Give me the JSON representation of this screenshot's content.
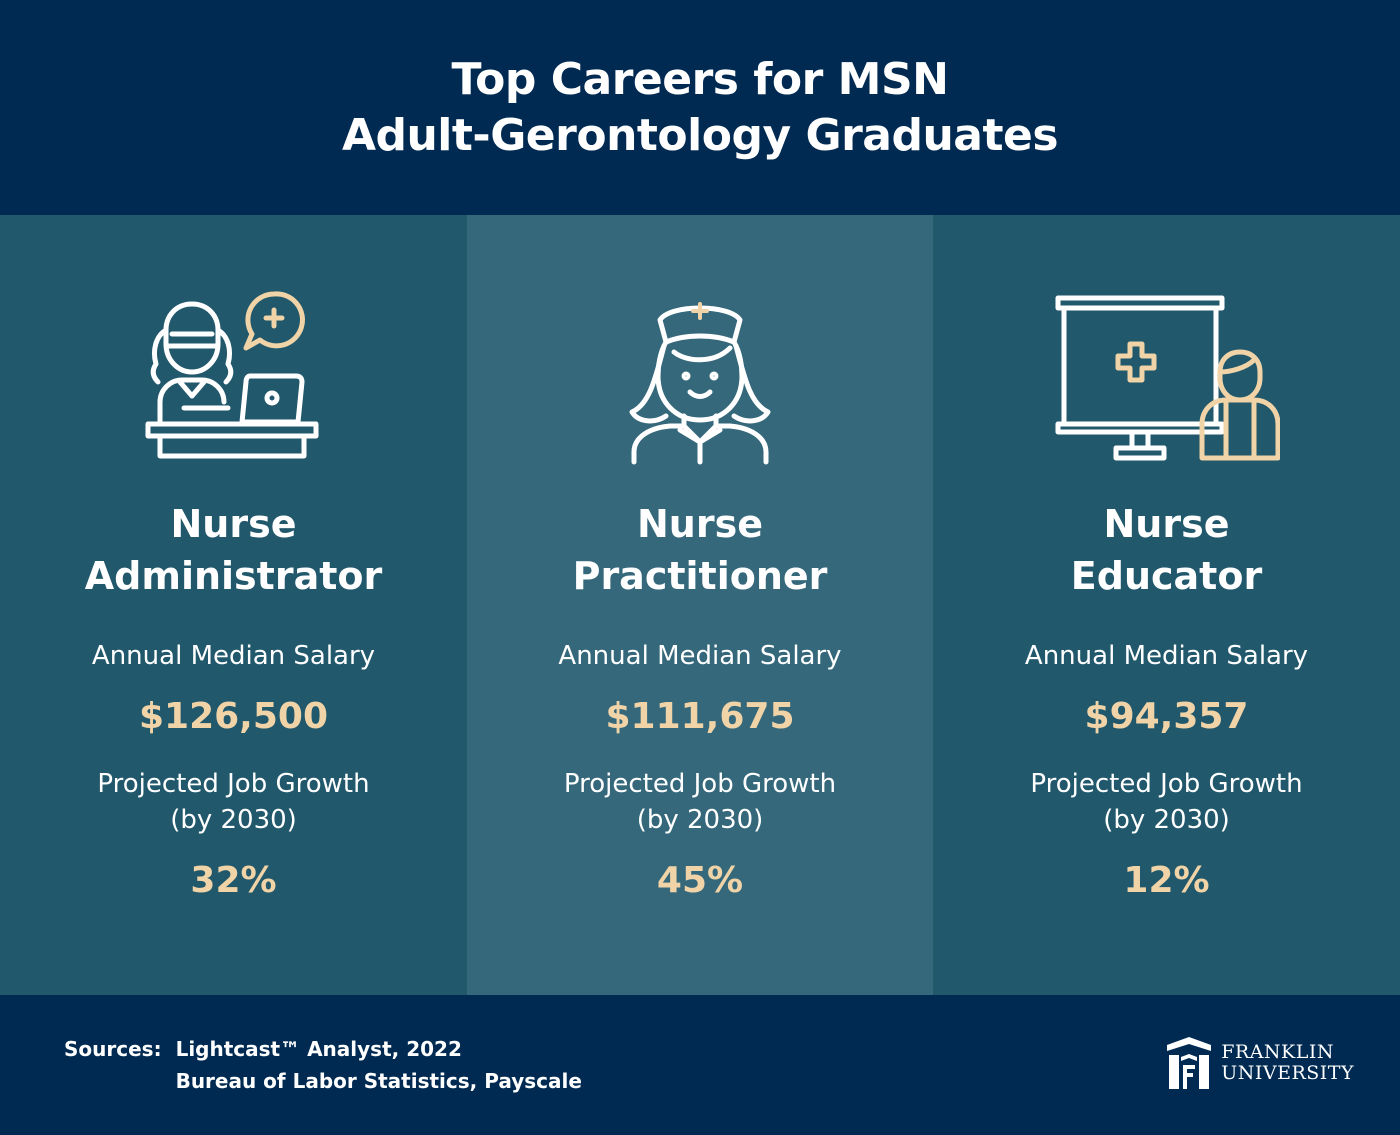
{
  "header": {
    "title_line1": "Top Careers for MSN",
    "title_line2": "Adult-Gerontology Graduates"
  },
  "careers": [
    {
      "icon": "nurse-at-desk-icon",
      "title_line1": "Nurse",
      "title_line2": "Administrator",
      "salary_label": "Annual Median Salary",
      "salary": "$126,500",
      "growth_label_line1": "Projected Job Growth",
      "growth_label_line2": "(by 2030)",
      "growth": "32%"
    },
    {
      "icon": "nurse-face-icon",
      "title_line1": "Nurse",
      "title_line2": "Practitioner",
      "salary_label": "Annual Median Salary",
      "salary": "$111,675",
      "growth_label_line1": "Projected Job Growth",
      "growth_label_line2": "(by 2030)",
      "growth": "45%"
    },
    {
      "icon": "presentation-board-icon",
      "title_line1": "Nurse",
      "title_line2": "Educator",
      "salary_label": "Annual Median Salary",
      "salary": "$94,357",
      "growth_label_line1": "Projected Job Growth",
      "growth_label_line2": "(by 2030)",
      "growth": "12%"
    }
  ],
  "footer": {
    "sources_label": "Sources:",
    "source_line1": "Lightcast™ Analyst, 2022",
    "source_line2": "Bureau of Labor Statistics, Payscale",
    "logo_line1": "FRANKLIN",
    "logo_line2": "UNIVERSITY"
  },
  "colors": {
    "navy": "#002a52",
    "teal_dark": "#21586c",
    "teal_light": "#35687b",
    "accent_gold": "#f0d3a7"
  }
}
